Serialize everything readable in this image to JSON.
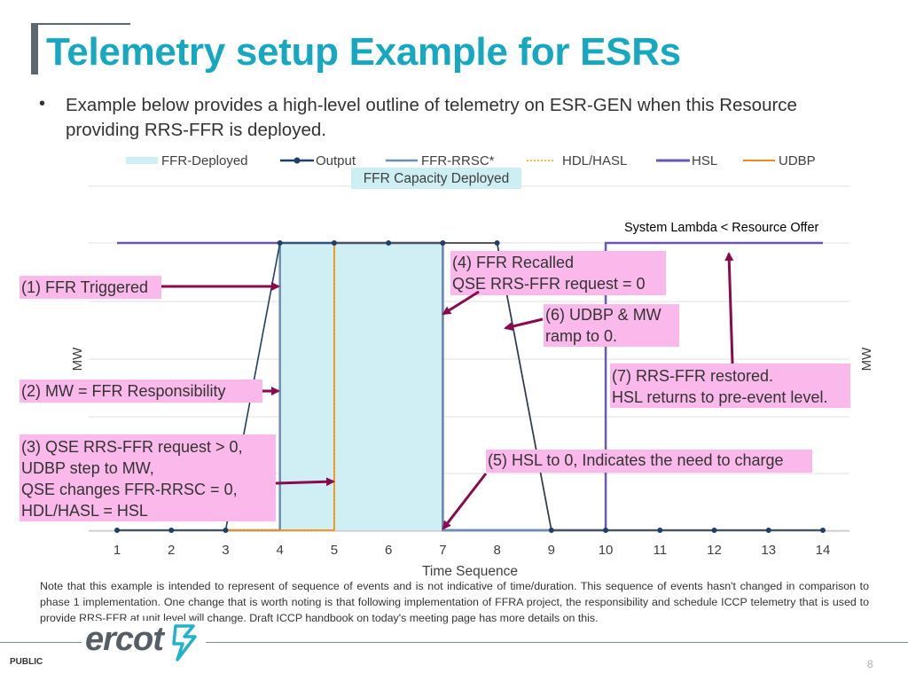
{
  "slide": {
    "title": "Telemetry setup Example for ESRs",
    "bullet": "Example below provides a high-level outline of telemetry on ESR-GEN when this Resource providing RRS-FFR is deployed.",
    "note": "Note that this example is intended to represent of sequence of events and is not indicative of time/duration. This sequence of events hasn't changed in comparison to phase 1 implementation. One change that is worth noting is that following implementation of FFRA project, the responsibility and schedule ICCP telemetry that is used to provide RRS-FFR at unit level will change. Draft ICCP handbook on today's meeting page has more details on this.",
    "footer_label": "PUBLIC",
    "page_number": "8",
    "logo_text": "ercot"
  },
  "colors": {
    "title": "#17a8c1",
    "ffr_deployed": "#cdeef3",
    "output": "#1f3f66",
    "ffr_rrsc": "#6b8fb0",
    "hdl_hasl": "#f4a300",
    "hsl": "#6a55b8",
    "udbp": "#f08a1c",
    "callout_fill": "#fbb8ea",
    "arrow": "#8a0a4e",
    "logo_accent": "#22b3c8"
  },
  "chart_data": {
    "type": "line",
    "x": [
      1,
      2,
      3,
      4,
      5,
      6,
      7,
      8,
      9,
      10,
      11,
      12,
      13,
      14
    ],
    "xlabel": "Time Sequence",
    "ylabel_left": "MW",
    "ylabel_right": "MW",
    "ylim": [
      0,
      1
    ],
    "legend_position": "top",
    "legend": [
      "FFR-Deployed",
      "Output",
      "FFR-RRSC*",
      "HDL/HASL",
      "HSL",
      "UDBP"
    ],
    "shaded_label": "FFR Capacity Deployed",
    "series": [
      {
        "name": "FFR-Deployed",
        "kind": "area",
        "x": [
          4,
          7
        ],
        "y": [
          1,
          1
        ]
      },
      {
        "name": "Output",
        "kind": "line-markers",
        "x": [
          1,
          2,
          3,
          4,
          5,
          6,
          7,
          8,
          9,
          10,
          11,
          12,
          13,
          14
        ],
        "y": [
          0,
          0,
          0,
          1,
          1,
          1,
          1,
          1,
          0,
          0,
          0,
          0,
          0,
          0
        ]
      },
      {
        "name": "FFR-RRSC*",
        "kind": "line",
        "x": [
          1,
          4,
          4,
          7,
          7,
          14
        ],
        "y": [
          0,
          0,
          1,
          1,
          0,
          0
        ]
      },
      {
        "name": "HDL/HASL",
        "kind": "dotted",
        "x": [
          1,
          5,
          5,
          8,
          9,
          14
        ],
        "y": [
          0,
          0,
          1,
          1,
          0,
          0
        ]
      },
      {
        "name": "HSL",
        "kind": "line",
        "x": [
          1,
          7,
          7,
          10,
          10,
          14
        ],
        "y": [
          1,
          1,
          0,
          0,
          1,
          1
        ]
      },
      {
        "name": "UDBP",
        "kind": "line",
        "x": [
          1,
          5,
          5,
          8,
          9,
          14
        ],
        "y": [
          0,
          0,
          1,
          1,
          0,
          0
        ]
      }
    ],
    "annotations": [
      {
        "text": "(1) FFR Triggered"
      },
      {
        "text": "(2) MW = FFR Responsibility"
      },
      {
        "text": "(3) QSE RRS-FFR request > 0,\nUDBP step to MW,\nQSE changes FFR-RRSC = 0,\nHDL/HASL = HSL"
      },
      {
        "text": "(4) FFR Recalled\nQSE RRS-FFR request = 0"
      },
      {
        "text": "(5) HSL to 0, Indicates the need to charge"
      },
      {
        "text": "(6) UDBP & MW\nramp to 0."
      },
      {
        "text": "(7) RRS-FFR restored.\nHSL returns to pre-event level."
      },
      {
        "text": "System Lambda < Resource Offer"
      }
    ]
  }
}
